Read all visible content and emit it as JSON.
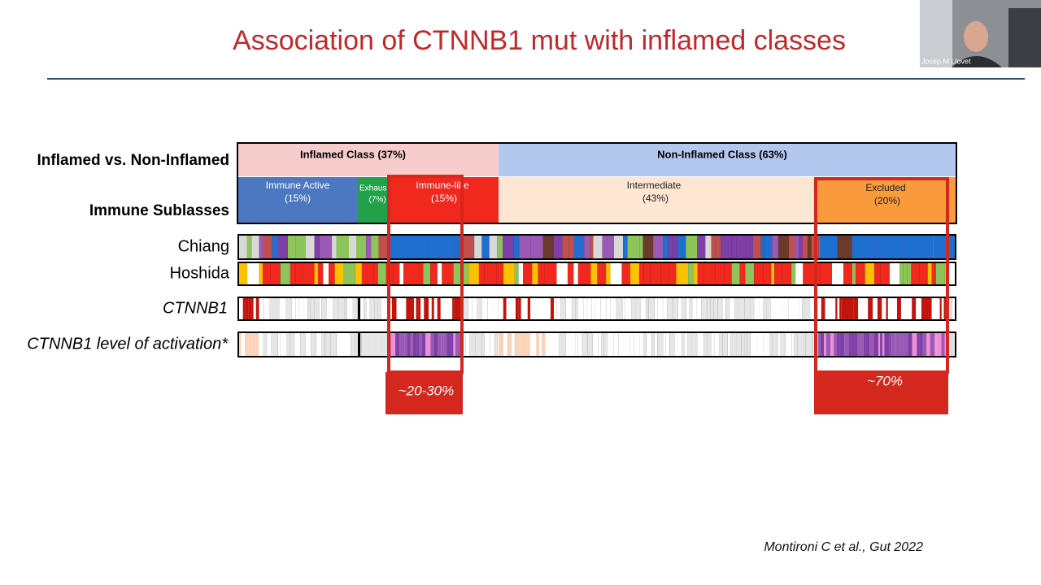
{
  "header": {
    "title": "Association of CTNNB1 mut with inflamed classes",
    "speaker": "Josep M Llovet"
  },
  "row_labels": [
    "Inflamed vs. Non-Inflamed",
    "Immune Sublasses",
    "Chiang",
    "Hoshida",
    "CTNNB1",
    "CTNNB1 level of activation*"
  ],
  "classes": [
    {
      "label": "Inflamed Class (37%)"
    },
    {
      "label": "Non-Inflamed Class (63%)"
    }
  ],
  "subclasses": [
    {
      "name": "Immune Active",
      "share": "(15%)"
    },
    {
      "name": "Exhaus",
      "share": "(7%)"
    },
    {
      "name": "Immune-like",
      "share": "(15%)"
    },
    {
      "name": "Intermediate",
      "share": "(43%)"
    },
    {
      "name": "Excluded",
      "share": "(20%)"
    }
  ],
  "callouts": [
    "~20-30%",
    "~70%"
  ],
  "citation": "Montironi C et al., Gut 2022"
}
